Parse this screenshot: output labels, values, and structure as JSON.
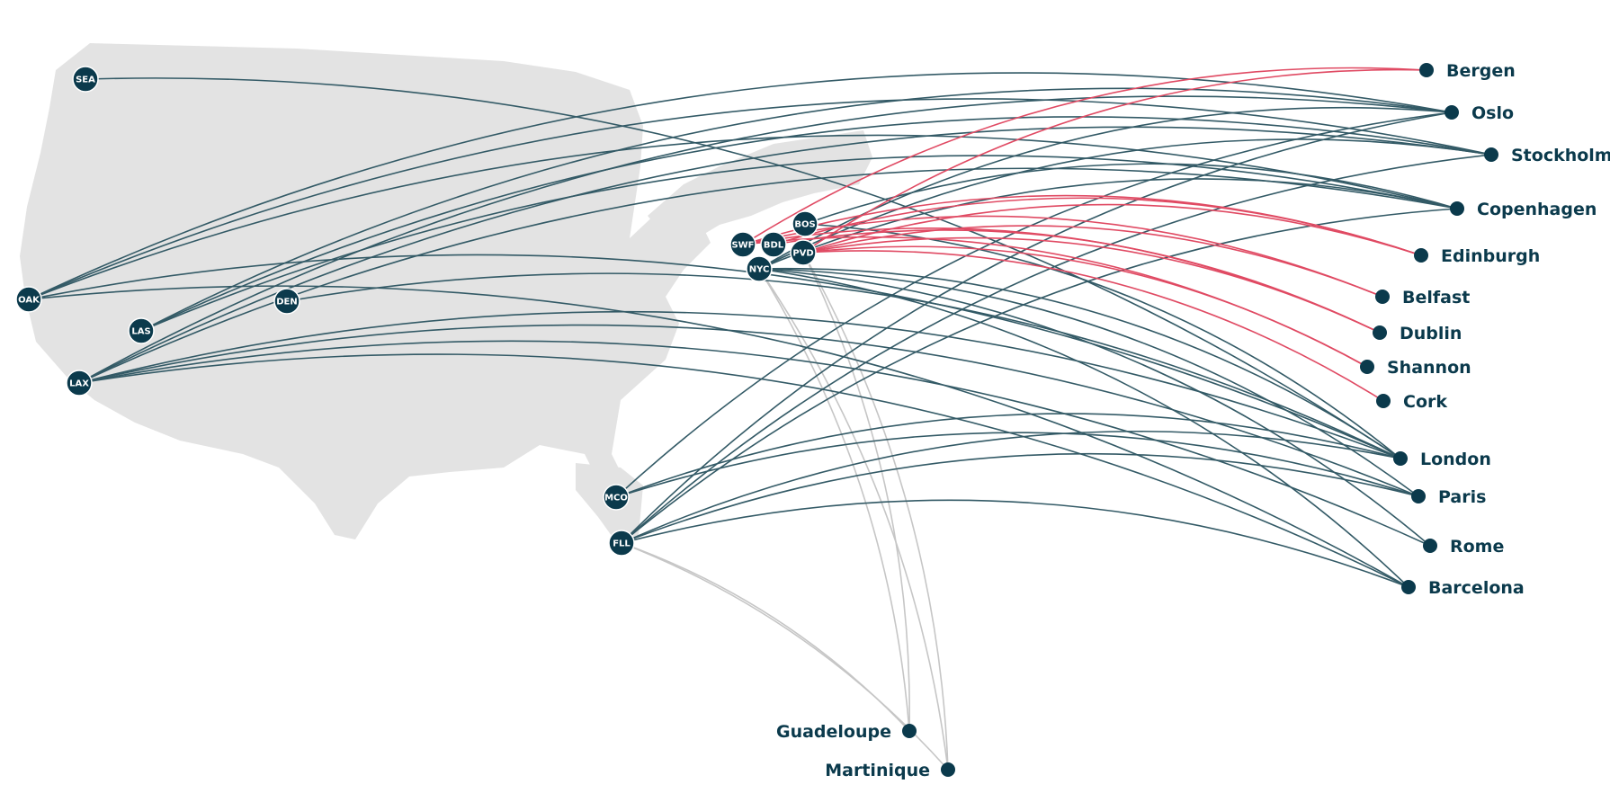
{
  "colors": {
    "land": "#e3e3e3",
    "node": "#0b3a4c",
    "route_europe": "#335a66",
    "route_celtic": "#e04a63",
    "route_caribbean": "#c6c6c6",
    "hub_text": "#ffffff",
    "label": "#0b3a4c"
  },
  "hubs": [
    {
      "id": "SEA",
      "code": "SEA"
    },
    {
      "id": "OAK",
      "code": "OAK"
    },
    {
      "id": "LAS",
      "code": "LAS"
    },
    {
      "id": "DEN",
      "code": "DEN"
    },
    {
      "id": "LAX",
      "code": "LAX"
    },
    {
      "id": "SWF",
      "code": "SWF"
    },
    {
      "id": "BDL",
      "code": "BDL"
    },
    {
      "id": "BOS",
      "code": "BOS"
    },
    {
      "id": "PVD",
      "code": "PVD"
    },
    {
      "id": "NYC",
      "code": "NYC"
    },
    {
      "id": "MCO",
      "code": "MCO"
    },
    {
      "id": "FLL",
      "code": "FLL"
    }
  ],
  "destinations": [
    {
      "id": "bergen",
      "name": "Bergen"
    },
    {
      "id": "oslo",
      "name": "Oslo"
    },
    {
      "id": "stockholm",
      "name": "Stockholm"
    },
    {
      "id": "copenhagen",
      "name": "Copenhagen"
    },
    {
      "id": "edinburgh",
      "name": "Edinburgh"
    },
    {
      "id": "belfast",
      "name": "Belfast"
    },
    {
      "id": "dublin",
      "name": "Dublin"
    },
    {
      "id": "shannon",
      "name": "Shannon"
    },
    {
      "id": "cork",
      "name": "Cork"
    },
    {
      "id": "london",
      "name": "London"
    },
    {
      "id": "paris",
      "name": "Paris"
    },
    {
      "id": "rome",
      "name": "Rome"
    },
    {
      "id": "barcelona",
      "name": "Barcelona"
    },
    {
      "id": "guadeloupe",
      "name": "Guadeloupe"
    },
    {
      "id": "martinique",
      "name": "Martinique"
    }
  ],
  "routes": [
    {
      "from": "SEA",
      "to": "london",
      "type": "europe"
    },
    {
      "from": "OAK",
      "to": "oslo",
      "type": "europe"
    },
    {
      "from": "OAK",
      "to": "stockholm",
      "type": "europe"
    },
    {
      "from": "OAK",
      "to": "copenhagen",
      "type": "europe"
    },
    {
      "from": "OAK",
      "to": "london",
      "type": "europe"
    },
    {
      "from": "OAK",
      "to": "barcelona",
      "type": "europe"
    },
    {
      "from": "LAS",
      "to": "oslo",
      "type": "europe"
    },
    {
      "from": "LAS",
      "to": "stockholm",
      "type": "europe"
    },
    {
      "from": "LAS",
      "to": "copenhagen",
      "type": "europe"
    },
    {
      "from": "DEN",
      "to": "london",
      "type": "europe"
    },
    {
      "from": "LAX",
      "to": "oslo",
      "type": "europe"
    },
    {
      "from": "LAX",
      "to": "stockholm",
      "type": "europe"
    },
    {
      "from": "LAX",
      "to": "copenhagen",
      "type": "europe"
    },
    {
      "from": "LAX",
      "to": "london",
      "type": "europe"
    },
    {
      "from": "LAX",
      "to": "paris",
      "type": "europe"
    },
    {
      "from": "LAX",
      "to": "rome",
      "type": "europe"
    },
    {
      "from": "LAX",
      "to": "barcelona",
      "type": "europe"
    },
    {
      "from": "BOS",
      "to": "copenhagen",
      "type": "europe"
    },
    {
      "from": "BOS",
      "to": "london",
      "type": "europe"
    },
    {
      "from": "NYC",
      "to": "oslo",
      "type": "europe"
    },
    {
      "from": "NYC",
      "to": "stockholm",
      "type": "europe"
    },
    {
      "from": "NYC",
      "to": "copenhagen",
      "type": "europe"
    },
    {
      "from": "NYC",
      "to": "london",
      "type": "europe"
    },
    {
      "from": "NYC",
      "to": "paris",
      "type": "europe"
    },
    {
      "from": "NYC",
      "to": "rome",
      "type": "europe"
    },
    {
      "from": "NYC",
      "to": "barcelona",
      "type": "europe"
    },
    {
      "from": "MCO",
      "to": "oslo",
      "type": "europe"
    },
    {
      "from": "MCO",
      "to": "london",
      "type": "europe"
    },
    {
      "from": "MCO",
      "to": "paris",
      "type": "europe"
    },
    {
      "from": "FLL",
      "to": "oslo",
      "type": "europe"
    },
    {
      "from": "FLL",
      "to": "stockholm",
      "type": "europe"
    },
    {
      "from": "FLL",
      "to": "copenhagen",
      "type": "europe"
    },
    {
      "from": "FLL",
      "to": "london",
      "type": "europe"
    },
    {
      "from": "FLL",
      "to": "paris",
      "type": "europe"
    },
    {
      "from": "FLL",
      "to": "barcelona",
      "type": "europe"
    },
    {
      "from": "SWF",
      "to": "bergen",
      "type": "celtic"
    },
    {
      "from": "SWF",
      "to": "edinburgh",
      "type": "celtic"
    },
    {
      "from": "SWF",
      "to": "belfast",
      "type": "celtic"
    },
    {
      "from": "SWF",
      "to": "dublin",
      "type": "celtic"
    },
    {
      "from": "SWF",
      "to": "shannon",
      "type": "celtic"
    },
    {
      "from": "BDL",
      "to": "edinburgh",
      "type": "celtic"
    },
    {
      "from": "BDL",
      "to": "dublin",
      "type": "celtic"
    },
    {
      "from": "PVD",
      "to": "bergen",
      "type": "celtic"
    },
    {
      "from": "PVD",
      "to": "edinburgh",
      "type": "celtic"
    },
    {
      "from": "PVD",
      "to": "belfast",
      "type": "celtic"
    },
    {
      "from": "PVD",
      "to": "dublin",
      "type": "celtic"
    },
    {
      "from": "PVD",
      "to": "shannon",
      "type": "celtic"
    },
    {
      "from": "PVD",
      "to": "cork",
      "type": "celtic"
    },
    {
      "from": "NYC",
      "to": "guadeloupe",
      "type": "caribbean"
    },
    {
      "from": "NYC",
      "to": "martinique",
      "type": "caribbean"
    },
    {
      "from": "PVD",
      "to": "guadeloupe",
      "type": "caribbean"
    },
    {
      "from": "PVD",
      "to": "martinique",
      "type": "caribbean"
    },
    {
      "from": "FLL",
      "to": "guadeloupe",
      "type": "caribbean"
    },
    {
      "from": "FLL",
      "to": "martinique",
      "type": "caribbean"
    }
  ]
}
